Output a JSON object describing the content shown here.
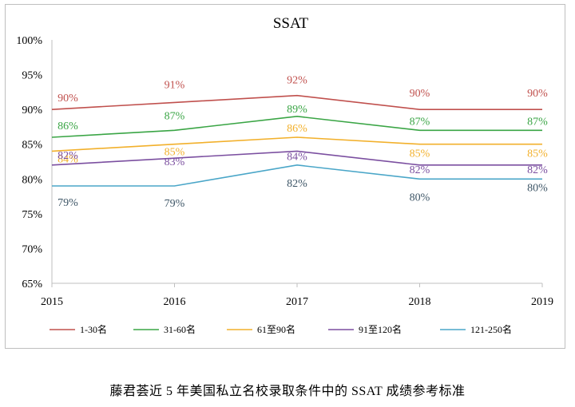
{
  "chart_data": {
    "type": "line",
    "title": "SSAT",
    "x": [
      "2015",
      "2016",
      "2017",
      "2018",
      "2019"
    ],
    "ylim": [
      0.65,
      1.0
    ],
    "yticks": [
      "65%",
      "70%",
      "75%",
      "80%",
      "85%",
      "90%",
      "95%",
      "100%"
    ],
    "grid": false,
    "legend_position": "bottom",
    "series": [
      {
        "name": "1-30名",
        "color": "#c0504d",
        "values": [
          0.9,
          0.91,
          0.92,
          0.9,
          0.9
        ],
        "labels": [
          "90%",
          "91%",
          "92%",
          "90%",
          "90%"
        ]
      },
      {
        "name": "31-60名",
        "color": "#3aa545",
        "values": [
          0.86,
          0.87,
          0.89,
          0.87,
          0.87
        ],
        "labels": [
          "86%",
          "87%",
          "89%",
          "87%",
          "87%"
        ]
      },
      {
        "name": "61至90名",
        "color": "#f2b02b",
        "values": [
          0.84,
          0.85,
          0.86,
          0.85,
          0.85
        ],
        "labels": [
          "84%",
          "85%",
          "86%",
          "85%",
          "85%"
        ]
      },
      {
        "name": "91至120名",
        "color": "#7b4fa0",
        "values": [
          0.82,
          0.83,
          0.84,
          0.82,
          0.82
        ],
        "labels": [
          "82%",
          "83%",
          "84%",
          "82%",
          "82%"
        ]
      },
      {
        "name": "121-250名",
        "color": "#4aa6c8",
        "values": [
          0.79,
          0.79,
          0.82,
          0.8,
          0.8
        ],
        "labels": [
          "79%",
          "79%",
          "82%",
          "80%",
          "80%"
        ]
      }
    ]
  },
  "caption": "藤君荟近 5 年美国私立名校录取条件中的 SSAT 成绩参考标准"
}
